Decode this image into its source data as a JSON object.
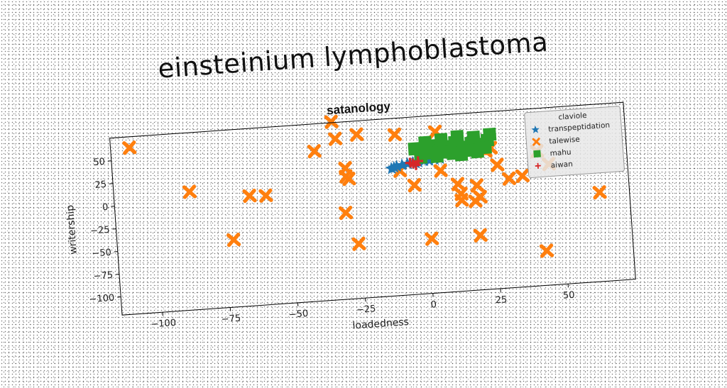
{
  "page": {
    "title": "einsteinium lymphoblastoma"
  },
  "chart_data": {
    "type": "scatter",
    "title": "satanology",
    "xlabel": "loadedness",
    "ylabel": "writership",
    "xlim": [
      -115,
      75
    ],
    "ylim": [
      -120,
      75
    ],
    "xticks": [
      -100,
      -75,
      -50,
      -25,
      0,
      25,
      50
    ],
    "yticks": [
      50,
      25,
      0,
      -25,
      -50,
      -75,
      -100
    ],
    "xtick_labels": [
      "−100",
      "−75",
      "−50",
      "−25",
      "0",
      "25",
      "50"
    ],
    "ytick_labels": [
      "50",
      "25",
      "0",
      "−25",
      "−50",
      "−75",
      "−100"
    ],
    "grid": false,
    "legend": {
      "title": "claviole",
      "position": "upper right"
    },
    "series": [
      {
        "name": "transpeptidation",
        "marker": "star",
        "color": "#1f77b4",
        "points": [
          [
            -12,
            20
          ],
          [
            -10,
            22
          ],
          [
            -8,
            23
          ],
          [
            -6,
            24
          ],
          [
            -4,
            25
          ],
          [
            -2,
            25
          ],
          [
            0,
            26
          ],
          [
            2,
            26
          ],
          [
            4,
            27
          ],
          [
            6,
            27
          ],
          [
            -11,
            21
          ],
          [
            -3,
            24
          ]
        ]
      },
      {
        "name": "talewise",
        "marker": "x",
        "color": "#ff7f0e",
        "points": [
          [
            -108,
            63
          ],
          [
            -87,
            10
          ],
          [
            -72,
            -46
          ],
          [
            -65,
            1
          ],
          [
            -59,
            0
          ],
          [
            -40,
            45
          ],
          [
            -33,
            76
          ],
          [
            -32,
            57
          ],
          [
            -30,
            -25
          ],
          [
            -29,
            24
          ],
          [
            -29,
            15
          ],
          [
            -28,
            12
          ],
          [
            -26,
            -60
          ],
          [
            -24,
            60
          ],
          [
            -10,
            57
          ],
          [
            -9,
            17
          ],
          [
            -4,
            0
          ],
          [
            1,
            -60
          ],
          [
            5,
            57
          ],
          [
            6,
            14
          ],
          [
            12,
            -2
          ],
          [
            13,
            -13
          ],
          [
            13,
            -20
          ],
          [
            18,
            -22
          ],
          [
            19,
            -5
          ],
          [
            19,
            -60
          ],
          [
            20,
            -18
          ],
          [
            23,
            32
          ],
          [
            25,
            35
          ],
          [
            42,
            28
          ],
          [
            43,
            -82
          ],
          [
            46,
            13
          ],
          [
            64,
            -22
          ],
          [
            27,
            16
          ],
          [
            31,
            0
          ],
          [
            36,
            2
          ]
        ]
      },
      {
        "name": "mahu",
        "marker": "square",
        "color": "#2ca02c",
        "points": [
          [
            -3,
            40
          ],
          [
            0,
            38
          ],
          [
            3,
            42
          ],
          [
            6,
            36
          ],
          [
            9,
            40
          ],
          [
            12,
            44
          ],
          [
            15,
            38
          ],
          [
            18,
            42
          ],
          [
            21,
            40
          ],
          [
            24,
            44
          ],
          [
            -1,
            30
          ],
          [
            2,
            34
          ],
          [
            5,
            30
          ],
          [
            8,
            34
          ],
          [
            11,
            32
          ],
          [
            14,
            30
          ],
          [
            17,
            34
          ],
          [
            20,
            32
          ],
          [
            23,
            36
          ],
          [
            1,
            46
          ],
          [
            7,
            48
          ],
          [
            13,
            50
          ],
          [
            19,
            48
          ],
          [
            25,
            50
          ]
        ]
      },
      {
        "name": "aiwan",
        "marker": "plus",
        "color": "#d62728",
        "points": [
          [
            -4,
            24
          ],
          [
            -2,
            26
          ],
          [
            -3,
            22
          ],
          [
            -5,
            25
          ]
        ]
      }
    ]
  },
  "colors": {
    "frame": "#000000",
    "legend_bg": "#e8e8e8",
    "legend_border": "#999999"
  }
}
